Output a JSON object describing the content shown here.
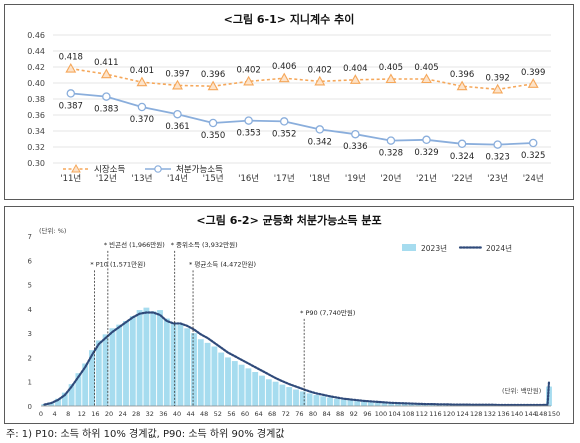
{
  "chart_data": [
    {
      "type": "line",
      "title": "<그림 6-1> 지니계수 추이",
      "categories": [
        "'11년",
        "'12년",
        "'13년",
        "'14년",
        "'15년",
        "'16년",
        "'17년",
        "'18년",
        "'19년",
        "'20년",
        "'21년",
        "'22년",
        "'23년",
        "'24년"
      ],
      "ylim": [
        0.3,
        0.46
      ],
      "yticks": [
        "0.30",
        "0.32",
        "0.34",
        "0.36",
        "0.38",
        "0.40",
        "0.42",
        "0.44",
        "0.46"
      ],
      "grid": true,
      "legend_position": "bottom-left",
      "series": [
        {
          "name": "시장소득",
          "color": "#f5a75a",
          "marker": "triangle",
          "style": "dashed",
          "values": [
            0.418,
            0.411,
            0.401,
            0.397,
            0.396,
            0.402,
            0.406,
            0.402,
            0.404,
            0.405,
            0.405,
            0.396,
            0.392,
            0.399
          ],
          "labels": [
            "0.418",
            "0.411",
            "0.401",
            "0.397",
            "0.396",
            "0.402",
            "0.406",
            "0.402",
            "0.404",
            "0.405",
            "0.405",
            "0.396",
            "0.392",
            "0.399"
          ]
        },
        {
          "name": "처분가능소득",
          "color": "#8aaedc",
          "marker": "circle",
          "style": "solid",
          "values": [
            0.387,
            0.383,
            0.37,
            0.361,
            0.35,
            0.353,
            0.352,
            0.342,
            0.336,
            0.328,
            0.329,
            0.324,
            0.323,
            0.325
          ],
          "labels": [
            "0.387",
            "0.383",
            "0.370",
            "0.361",
            "0.350",
            "0.353",
            "0.352",
            "0.342",
            "0.336",
            "0.328",
            "0.329",
            "0.324",
            "0.323",
            "0.325"
          ]
        }
      ]
    },
    {
      "type": "bar",
      "title": "<그림 6-2> 균등화 처분가능소득 분포",
      "ylabel": "(단위: %)",
      "xunit": "(단위: 백만원)",
      "ylim": [
        0,
        7
      ],
      "yticks": [
        "0",
        "1",
        "2",
        "3",
        "4",
        "5",
        "6",
        "7"
      ],
      "xlim": [
        0,
        150
      ],
      "xticks": [
        "0",
        "4",
        "8",
        "12",
        "16",
        "20",
        "24",
        "28",
        "32",
        "36",
        "40",
        "44",
        "48",
        "52",
        "56",
        "60",
        "64",
        "68",
        "72",
        "76",
        "80",
        "84",
        "88",
        "92",
        "96",
        "100",
        "104",
        "108",
        "112",
        "116",
        "120",
        "124",
        "128",
        "132",
        "136",
        "140",
        "144",
        "148",
        "150"
      ],
      "legend_position": "top-right",
      "series": [
        {
          "name": "2023년",
          "color": "#a6dcef",
          "style": "bar",
          "x": [
            1,
            3,
            5,
            7,
            9,
            11,
            13,
            15,
            17,
            19,
            21,
            23,
            25,
            27,
            29,
            31,
            33,
            35,
            37,
            39,
            41,
            43,
            45,
            47,
            49,
            51,
            53,
            55,
            57,
            59,
            61,
            63,
            65,
            67,
            69,
            71,
            73,
            75,
            77,
            79,
            81,
            83,
            85,
            87,
            89,
            91,
            93,
            95,
            97,
            99,
            101,
            103,
            105,
            107,
            109,
            111,
            113,
            115,
            117,
            119,
            121,
            123,
            125,
            127,
            129,
            131,
            133,
            135,
            137,
            139,
            141,
            143,
            145,
            147,
            149,
            151
          ],
          "values": [
            0.08,
            0.15,
            0.3,
            0.55,
            0.9,
            1.35,
            1.75,
            2.3,
            2.7,
            2.95,
            3.2,
            3.35,
            3.5,
            3.7,
            3.95,
            4.05,
            3.9,
            3.95,
            3.6,
            3.4,
            3.35,
            3.2,
            3.0,
            2.75,
            2.6,
            2.45,
            2.2,
            2.0,
            1.85,
            1.7,
            1.55,
            1.4,
            1.25,
            1.1,
            1.0,
            0.88,
            0.78,
            0.68,
            0.6,
            0.52,
            0.45,
            0.4,
            0.35,
            0.3,
            0.26,
            0.23,
            0.2,
            0.18,
            0.16,
            0.14,
            0.12,
            0.11,
            0.1,
            0.09,
            0.08,
            0.07,
            0.07,
            0.06,
            0.06,
            0.05,
            0.05,
            0.05,
            0.04,
            0.04,
            0.04,
            0.04,
            0.03,
            0.03,
            0.03,
            0.03,
            0.03,
            0.03,
            0.03,
            0.03,
            0.03,
            0.8
          ]
        },
        {
          "name": "2024년",
          "color": "#2f4a7a",
          "style": "dotted-line",
          "x": [
            1,
            3,
            5,
            7,
            9,
            11,
            13,
            15,
            17,
            19,
            21,
            23,
            25,
            27,
            29,
            31,
            33,
            35,
            37,
            39,
            41,
            43,
            45,
            47,
            49,
            51,
            53,
            55,
            57,
            59,
            61,
            63,
            65,
            67,
            69,
            71,
            73,
            75,
            77,
            79,
            81,
            83,
            85,
            87,
            89,
            91,
            93,
            95,
            97,
            99,
            101,
            103,
            105,
            107,
            109,
            111,
            113,
            115,
            117,
            119,
            121,
            123,
            125,
            127,
            129,
            131,
            133,
            135,
            137,
            139,
            141,
            143,
            145,
            147,
            149,
            151
          ],
          "values": [
            0.06,
            0.12,
            0.25,
            0.45,
            0.8,
            1.2,
            1.6,
            2.1,
            2.55,
            2.8,
            3.05,
            3.25,
            3.45,
            3.65,
            3.8,
            3.85,
            3.85,
            3.75,
            3.5,
            3.4,
            3.4,
            3.3,
            3.15,
            2.95,
            2.8,
            2.6,
            2.4,
            2.2,
            2.05,
            1.9,
            1.75,
            1.6,
            1.45,
            1.3,
            1.15,
            1.02,
            0.9,
            0.8,
            0.7,
            0.6,
            0.52,
            0.46,
            0.4,
            0.35,
            0.3,
            0.27,
            0.24,
            0.21,
            0.19,
            0.17,
            0.15,
            0.13,
            0.12,
            0.11,
            0.1,
            0.09,
            0.08,
            0.08,
            0.07,
            0.07,
            0.06,
            0.06,
            0.06,
            0.05,
            0.05,
            0.05,
            0.05,
            0.04,
            0.04,
            0.04,
            0.04,
            0.04,
            0.04,
            0.04,
            0.05,
            1.0
          ]
        }
      ],
      "annotations": [
        {
          "label": "* 빈곤선 (1,966만원)",
          "x": 19.66,
          "text_y": 6.55
        },
        {
          "label": "* P10 (1,571만원)",
          "x": 15.71,
          "text_y": 5.75
        },
        {
          "label": "* 중위소득 (3,932만원)",
          "x": 39.32,
          "text_y": 6.55
        },
        {
          "label": "* 평균소득 (4,472만원)",
          "x": 44.72,
          "text_y": 5.75
        },
        {
          "label": "* P90 (7,740만원)",
          "x": 77.4,
          "text_y": 3.75
        }
      ]
    }
  ],
  "footnote": "주: 1) P10: 소득 하위 10% 경계값, P90: 소득 하위 90% 경계값"
}
